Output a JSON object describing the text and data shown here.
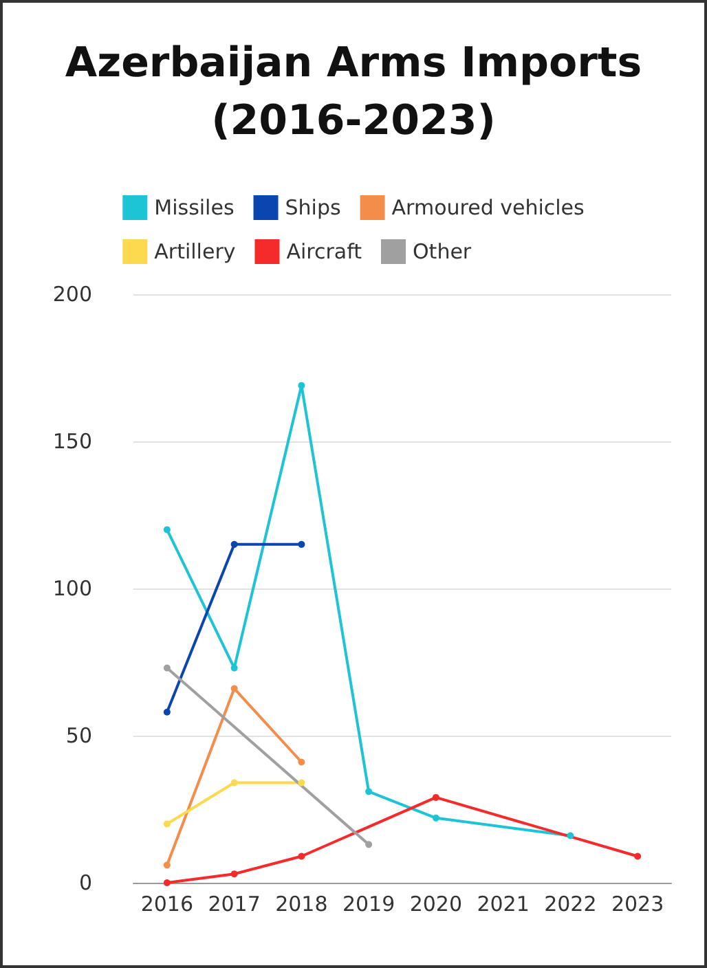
{
  "chart_data": {
    "type": "line",
    "title": "Azerbaijan Arms Imports\n(2016-2023)",
    "categories": [
      "2016",
      "2017",
      "2018",
      "2019",
      "2020",
      "2021",
      "2022",
      "2023"
    ],
    "series": [
      {
        "name": "Missiles",
        "color": "#1cc4d6",
        "values": [
          120,
          73,
          169,
          31,
          22,
          null,
          16,
          null
        ]
      },
      {
        "name": "Ships",
        "color": "#0a45b0",
        "values": [
          58,
          115,
          115,
          null,
          null,
          null,
          null,
          null
        ]
      },
      {
        "name": "Armoured vehicles",
        "color": "#f48c4a",
        "values": [
          6,
          66,
          41,
          null,
          null,
          null,
          null,
          null
        ]
      },
      {
        "name": "Artillery",
        "color": "#fcd94f",
        "values": [
          20,
          34,
          34,
          null,
          null,
          null,
          null,
          null
        ]
      },
      {
        "name": "Aircraft",
        "color": "#f52a2a",
        "values": [
          0,
          3,
          9,
          null,
          29,
          null,
          null,
          9
        ]
      },
      {
        "name": "Other",
        "color": "#a0a0a0",
        "values": [
          73,
          null,
          null,
          13,
          null,
          null,
          null,
          null
        ]
      }
    ],
    "ylim": [
      0,
      200
    ],
    "yticks": [
      0,
      50,
      100,
      150,
      200
    ],
    "grid": "y",
    "legend": "top",
    "marker": "circle",
    "line_style": "solid"
  }
}
